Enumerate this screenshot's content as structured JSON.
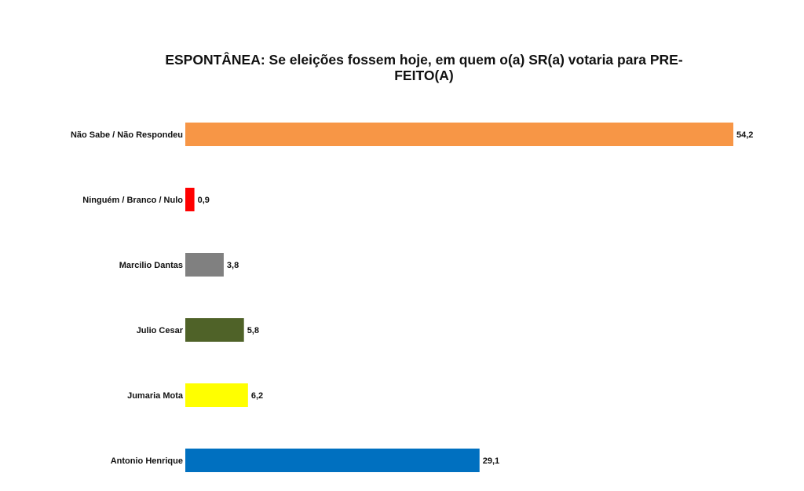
{
  "chart_data": {
    "type": "bar",
    "orientation": "horizontal",
    "title": "ESPONTÂNEA: Se eleições fossem hoje, em quem o(a) SR(a) votaria para PRE-FEITO(A)",
    "title_lines": [
      "ESPONTÂNEA: Se eleições fossem hoje, em quem o(a) SR(a) votaria para PRE-",
      "FEITO(A)"
    ],
    "categories": [
      "Não Sabe / Não Respondeu",
      "Ninguém / Branco / Nulo",
      "Marcilio Dantas",
      "Julio Cesar",
      "Jumaria Mota",
      "Antonio Henrique"
    ],
    "values": [
      54.2,
      0.9,
      3.8,
      5.8,
      6.2,
      29.1
    ],
    "value_labels": [
      "54,2",
      "0,9",
      "3,8",
      "5,8",
      "6,2",
      "29,1"
    ],
    "colors": [
      "#F79646",
      "#FF0000",
      "#808080",
      "#4F6228",
      "#FFFF00",
      "#0070C0"
    ],
    "xlabel": "",
    "ylabel": "",
    "xlim": [
      0,
      54.2
    ],
    "grid": false,
    "legend": "none"
  }
}
